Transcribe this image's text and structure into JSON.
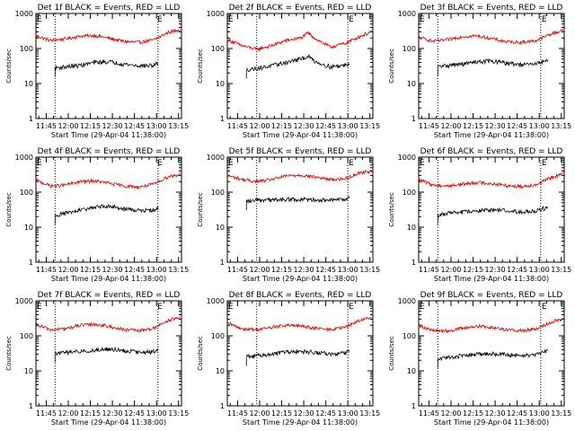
{
  "figure": {
    "background": "#ffffff",
    "axis_color": "#000000",
    "events_color": "#000000",
    "lld_color": "#e00000"
  },
  "chart_data": [
    {
      "type": "line",
      "title": "Det 1f BLACK = Events, RED = LLD",
      "xlabel": "Start Time (29-Apr-04 11:38:00)",
      "ylabel": "Counts/sec",
      "yscale": "log",
      "ylim": [
        1,
        1000
      ],
      "xlim_minutes_after_start": [
        0,
        99
      ],
      "x_tick_labels": [
        "11:45",
        "12:00",
        "12:15",
        "12:30",
        "12:45",
        "13:00",
        "13:15"
      ],
      "y_tick_labels": [
        "1",
        "10",
        "100",
        "1000"
      ],
      "x_ticks_minutes_after_start": [
        7,
        22,
        37,
        52,
        67,
        82,
        97
      ],
      "dotted_lines_minutes_after_start": [
        13,
        83
      ],
      "markers": [
        {
          "text": "E",
          "x_minutes_after_start": 0
        },
        {
          "text": "E",
          "x_minutes_after_start": 82
        }
      ],
      "series": [
        {
          "name": "RED = LLD",
          "x_minutes_after_start": [
            0,
            10,
            20,
            30,
            40,
            50,
            60,
            70,
            80,
            90,
            98
          ],
          "values": [
            230,
            170,
            190,
            225,
            235,
            195,
            160,
            150,
            175,
            290,
            350
          ]
        },
        {
          "name": "BLACK = Events",
          "x_minutes_after_start": [
            13,
            20,
            30,
            40,
            50,
            60,
            70,
            80,
            83
          ],
          "values": [
            28,
            30,
            33,
            40,
            42,
            36,
            32,
            33,
            38
          ]
        }
      ]
    },
    {
      "type": "line",
      "title": "Det 2f BLACK = Events, RED = LLD",
      "xlabel": "Start Time (29-Apr-04 11:38:00)",
      "ylabel": "Counts/sec",
      "yscale": "log",
      "ylim": [
        1,
        1000
      ],
      "xlim_minutes_after_start": [
        0,
        99
      ],
      "x_tick_labels": [
        "11:45",
        "12:00",
        "12:15",
        "12:30",
        "12:45",
        "13:00",
        "13:15"
      ],
      "y_tick_labels": [
        "1",
        "10",
        "100",
        "1000"
      ],
      "x_ticks_minutes_after_start": [
        7,
        22,
        37,
        52,
        67,
        82,
        97
      ],
      "dotted_lines_minutes_after_start": [
        20,
        82
      ],
      "markers": [
        {
          "text": "E",
          "x_minutes_after_start": 0
        },
        {
          "text": "E",
          "x_minutes_after_start": 82
        }
      ],
      "series": [
        {
          "name": "RED = LLD",
          "x_minutes_after_start": [
            0,
            10,
            20,
            30,
            40,
            50,
            55,
            60,
            70,
            80,
            90,
            98
          ],
          "values": [
            180,
            120,
            95,
            120,
            170,
            200,
            280,
            190,
            110,
            140,
            220,
            300
          ]
        },
        {
          "name": "BLACK = Events",
          "x_minutes_after_start": [
            13,
            20,
            30,
            40,
            50,
            55,
            60,
            70,
            80,
            83
          ],
          "values": [
            25,
            27,
            32,
            40,
            50,
            60,
            42,
            30,
            33,
            38
          ]
        }
      ]
    },
    {
      "type": "line",
      "title": "Det 3f BLACK = Events, RED = LLD",
      "xlabel": "Start Time (29-Apr-04 11:38:00)",
      "ylabel": "Counts/sec",
      "yscale": "log",
      "ylim": [
        1,
        1000
      ],
      "xlim_minutes_after_start": [
        0,
        99
      ],
      "x_tick_labels": [
        "11:45",
        "12:00",
        "12:15",
        "12:30",
        "12:45",
        "13:00",
        "13:15"
      ],
      "y_tick_labels": [
        "1",
        "10",
        "100",
        "1000"
      ],
      "x_ticks_minutes_after_start": [
        7,
        22,
        37,
        52,
        67,
        82,
        97
      ],
      "dotted_lines_minutes_after_start": [
        13,
        83
      ],
      "markers": [
        {
          "text": "E",
          "x_minutes_after_start": 0
        },
        {
          "text": "E",
          "x_minutes_after_start": 83
        }
      ],
      "series": [
        {
          "name": "RED = LLD",
          "x_minutes_after_start": [
            0,
            10,
            20,
            30,
            40,
            50,
            60,
            70,
            80,
            90,
            98
          ],
          "values": [
            210,
            160,
            180,
            220,
            230,
            190,
            155,
            150,
            170,
            260,
            330
          ]
        },
        {
          "name": "BLACK = Events",
          "x_minutes_after_start": [
            13,
            20,
            30,
            40,
            50,
            60,
            70,
            80,
            83,
            88
          ],
          "values": [
            30,
            33,
            36,
            42,
            44,
            38,
            34,
            36,
            42,
            45
          ]
        }
      ]
    },
    {
      "type": "line",
      "title": "Det 4f BLACK = Events, RED = LLD",
      "xlabel": "Start Time (29-Apr-04 11:38:00)",
      "ylabel": "Counts/sec",
      "yscale": "log",
      "ylim": [
        1,
        1000
      ],
      "xlim_minutes_after_start": [
        0,
        99
      ],
      "x_tick_labels": [
        "11:45",
        "12:00",
        "12:15",
        "12:30",
        "12:45",
        "13:00",
        "13:15"
      ],
      "y_tick_labels": [
        "1",
        "10",
        "100",
        "1000"
      ],
      "x_ticks_minutes_after_start": [
        7,
        22,
        37,
        52,
        67,
        82,
        97
      ],
      "dotted_lines_minutes_after_start": [
        13,
        83
      ],
      "markers": [
        {
          "text": "E",
          "x_minutes_after_start": 0
        },
        {
          "text": "E",
          "x_minutes_after_start": 82
        }
      ],
      "series": [
        {
          "name": "RED = LLD",
          "x_minutes_after_start": [
            0,
            10,
            20,
            30,
            40,
            50,
            60,
            70,
            80,
            90,
            98
          ],
          "values": [
            220,
            150,
            160,
            200,
            210,
            180,
            150,
            140,
            170,
            280,
            320
          ]
        },
        {
          "name": "BLACK = Events",
          "x_minutes_after_start": [
            13,
            20,
            30,
            40,
            50,
            60,
            70,
            80,
            83
          ],
          "values": [
            22,
            25,
            30,
            38,
            40,
            34,
            30,
            30,
            36
          ]
        }
      ]
    },
    {
      "type": "line",
      "title": "Det 5f BLACK = Events, RED = LLD",
      "xlabel": "Start Time (29-Apr-04 11:38:00)",
      "ylabel": "Counts/sec",
      "yscale": "log",
      "ylim": [
        1,
        1000
      ],
      "xlim_minutes_after_start": [
        0,
        99
      ],
      "x_tick_labels": [
        "11:45",
        "12:00",
        "12:15",
        "12:30",
        "12:45",
        "13:00",
        "13:15"
      ],
      "y_tick_labels": [
        "1",
        "10",
        "100",
        "1000"
      ],
      "x_ticks_minutes_after_start": [
        7,
        22,
        37,
        52,
        67,
        82,
        97
      ],
      "dotted_lines_minutes_after_start": [
        20,
        82
      ],
      "markers": [
        {
          "text": "E",
          "x_minutes_after_start": 0
        },
        {
          "text": "E",
          "x_minutes_after_start": 82
        }
      ],
      "series": [
        {
          "name": "RED = LLD",
          "x_minutes_after_start": [
            0,
            10,
            20,
            30,
            40,
            50,
            60,
            70,
            80,
            90,
            98
          ],
          "values": [
            300,
            230,
            200,
            230,
            290,
            310,
            270,
            230,
            240,
            360,
            400
          ]
        },
        {
          "name": "BLACK = Events",
          "x_minutes_after_start": [
            13,
            20,
            30,
            40,
            50,
            60,
            70,
            80,
            83
          ],
          "values": [
            55,
            58,
            60,
            62,
            62,
            60,
            58,
            62,
            75
          ]
        }
      ]
    },
    {
      "type": "line",
      "title": "Det 6f BLACK = Events, RED = LLD",
      "xlabel": "Start Time (29-Apr-04 11:38:00)",
      "ylabel": "Counts/sec",
      "yscale": "log",
      "ylim": [
        1,
        1000
      ],
      "xlim_minutes_after_start": [
        0,
        99
      ],
      "x_tick_labels": [
        "11:45",
        "12:00",
        "12:15",
        "12:30",
        "12:45",
        "13:00",
        "13:15"
      ],
      "y_tick_labels": [
        "1",
        "10",
        "100",
        "1000"
      ],
      "x_ticks_minutes_after_start": [
        7,
        22,
        37,
        52,
        67,
        82,
        97
      ],
      "dotted_lines_minutes_after_start": [
        13,
        83
      ],
      "markers": [
        {
          "text": "E",
          "x_minutes_after_start": 0
        },
        {
          "text": "E",
          "x_minutes_after_start": 83
        }
      ],
      "series": [
        {
          "name": "RED = LLD",
          "x_minutes_after_start": [
            0,
            10,
            20,
            30,
            40,
            50,
            60,
            70,
            80,
            90,
            98
          ],
          "values": [
            230,
            160,
            150,
            170,
            190,
            175,
            155,
            145,
            165,
            260,
            330
          ]
        },
        {
          "name": "BLACK = Events",
          "x_minutes_after_start": [
            13,
            20,
            30,
            40,
            50,
            60,
            70,
            80,
            83,
            88
          ],
          "values": [
            22,
            25,
            27,
            30,
            31,
            30,
            28,
            30,
            33,
            36
          ]
        }
      ]
    },
    {
      "type": "line",
      "title": "Det 7f BLACK = Events, RED = LLD",
      "xlabel": "Start Time (29-Apr-04 11:38:00)",
      "ylabel": "Counts/sec",
      "yscale": "log",
      "ylim": [
        1,
        1000
      ],
      "xlim_minutes_after_start": [
        0,
        99
      ],
      "x_tick_labels": [
        "11:45",
        "12:00",
        "12:15",
        "12:30",
        "12:45",
        "13:00",
        "13:15"
      ],
      "y_tick_labels": [
        "1",
        "10",
        "100",
        "1000"
      ],
      "x_ticks_minutes_after_start": [
        7,
        22,
        37,
        52,
        67,
        82,
        97
      ],
      "dotted_lines_minutes_after_start": [
        13,
        83
      ],
      "markers": [
        {
          "text": "E",
          "x_minutes_after_start": 0
        },
        {
          "text": "E",
          "x_minutes_after_start": 82
        }
      ],
      "series": [
        {
          "name": "RED = LLD",
          "x_minutes_after_start": [
            0,
            10,
            20,
            30,
            40,
            50,
            60,
            70,
            80,
            90,
            98
          ],
          "values": [
            210,
            150,
            160,
            200,
            215,
            185,
            150,
            140,
            165,
            280,
            330
          ]
        },
        {
          "name": "BLACK = Events",
          "x_minutes_after_start": [
            13,
            20,
            30,
            40,
            50,
            60,
            70,
            80,
            83
          ],
          "values": [
            32,
            33,
            36,
            40,
            42,
            38,
            34,
            35,
            40
          ]
        }
      ]
    },
    {
      "type": "line",
      "title": "Det 8f BLACK = Events, RED = LLD",
      "xlabel": "Start Time (29-Apr-04 11:38:00)",
      "ylabel": "Counts/sec",
      "yscale": "log",
      "ylim": [
        1,
        1000
      ],
      "xlim_minutes_after_start": [
        0,
        99
      ],
      "x_tick_labels": [
        "11:45",
        "12:00",
        "12:15",
        "12:30",
        "12:45",
        "13:00",
        "13:15"
      ],
      "y_tick_labels": [
        "1",
        "10",
        "100",
        "1000"
      ],
      "x_ticks_minutes_after_start": [
        7,
        22,
        37,
        52,
        67,
        82,
        97
      ],
      "dotted_lines_minutes_after_start": [
        20,
        82
      ],
      "markers": [
        {
          "text": "E",
          "x_minutes_after_start": 0
        },
        {
          "text": "E",
          "x_minutes_after_start": 82
        }
      ],
      "series": [
        {
          "name": "RED = LLD",
          "x_minutes_after_start": [
            0,
            10,
            20,
            30,
            40,
            50,
            60,
            70,
            80,
            90,
            98
          ],
          "values": [
            230,
            160,
            150,
            175,
            200,
            190,
            165,
            150,
            175,
            280,
            330
          ]
        },
        {
          "name": "BLACK = Events",
          "x_minutes_after_start": [
            13,
            20,
            30,
            40,
            50,
            60,
            70,
            80,
            83
          ],
          "values": [
            25,
            27,
            30,
            34,
            36,
            34,
            30,
            32,
            38
          ]
        }
      ]
    },
    {
      "type": "line",
      "title": "Det 9f BLACK = Events, RED = LLD",
      "xlabel": "Start Time (29-Apr-04 11:38:00)",
      "ylabel": "Counts/sec",
      "yscale": "log",
      "ylim": [
        1,
        1000
      ],
      "xlim_minutes_after_start": [
        0,
        99
      ],
      "x_tick_labels": [
        "11:45",
        "12:00",
        "12:15",
        "12:30",
        "12:45",
        "13:00",
        "13:15"
      ],
      "y_tick_labels": [
        "1",
        "10",
        "100",
        "1000"
      ],
      "x_ticks_minutes_after_start": [
        7,
        22,
        37,
        52,
        67,
        82,
        97
      ],
      "dotted_lines_minutes_after_start": [
        13,
        83
      ],
      "markers": [
        {
          "text": "E",
          "x_minutes_after_start": 0
        },
        {
          "text": "E",
          "x_minutes_after_start": 83
        }
      ],
      "series": [
        {
          "name": "RED = LLD",
          "x_minutes_after_start": [
            0,
            10,
            20,
            30,
            40,
            50,
            60,
            70,
            80,
            90,
            98
          ],
          "values": [
            200,
            140,
            140,
            165,
            190,
            175,
            150,
            140,
            160,
            250,
            310
          ]
        },
        {
          "name": "BLACK = Events",
          "x_minutes_after_start": [
            13,
            20,
            30,
            40,
            50,
            60,
            70,
            80,
            83,
            88
          ],
          "values": [
            22,
            25,
            27,
            30,
            31,
            29,
            27,
            29,
            32,
            36
          ]
        }
      ]
    }
  ]
}
